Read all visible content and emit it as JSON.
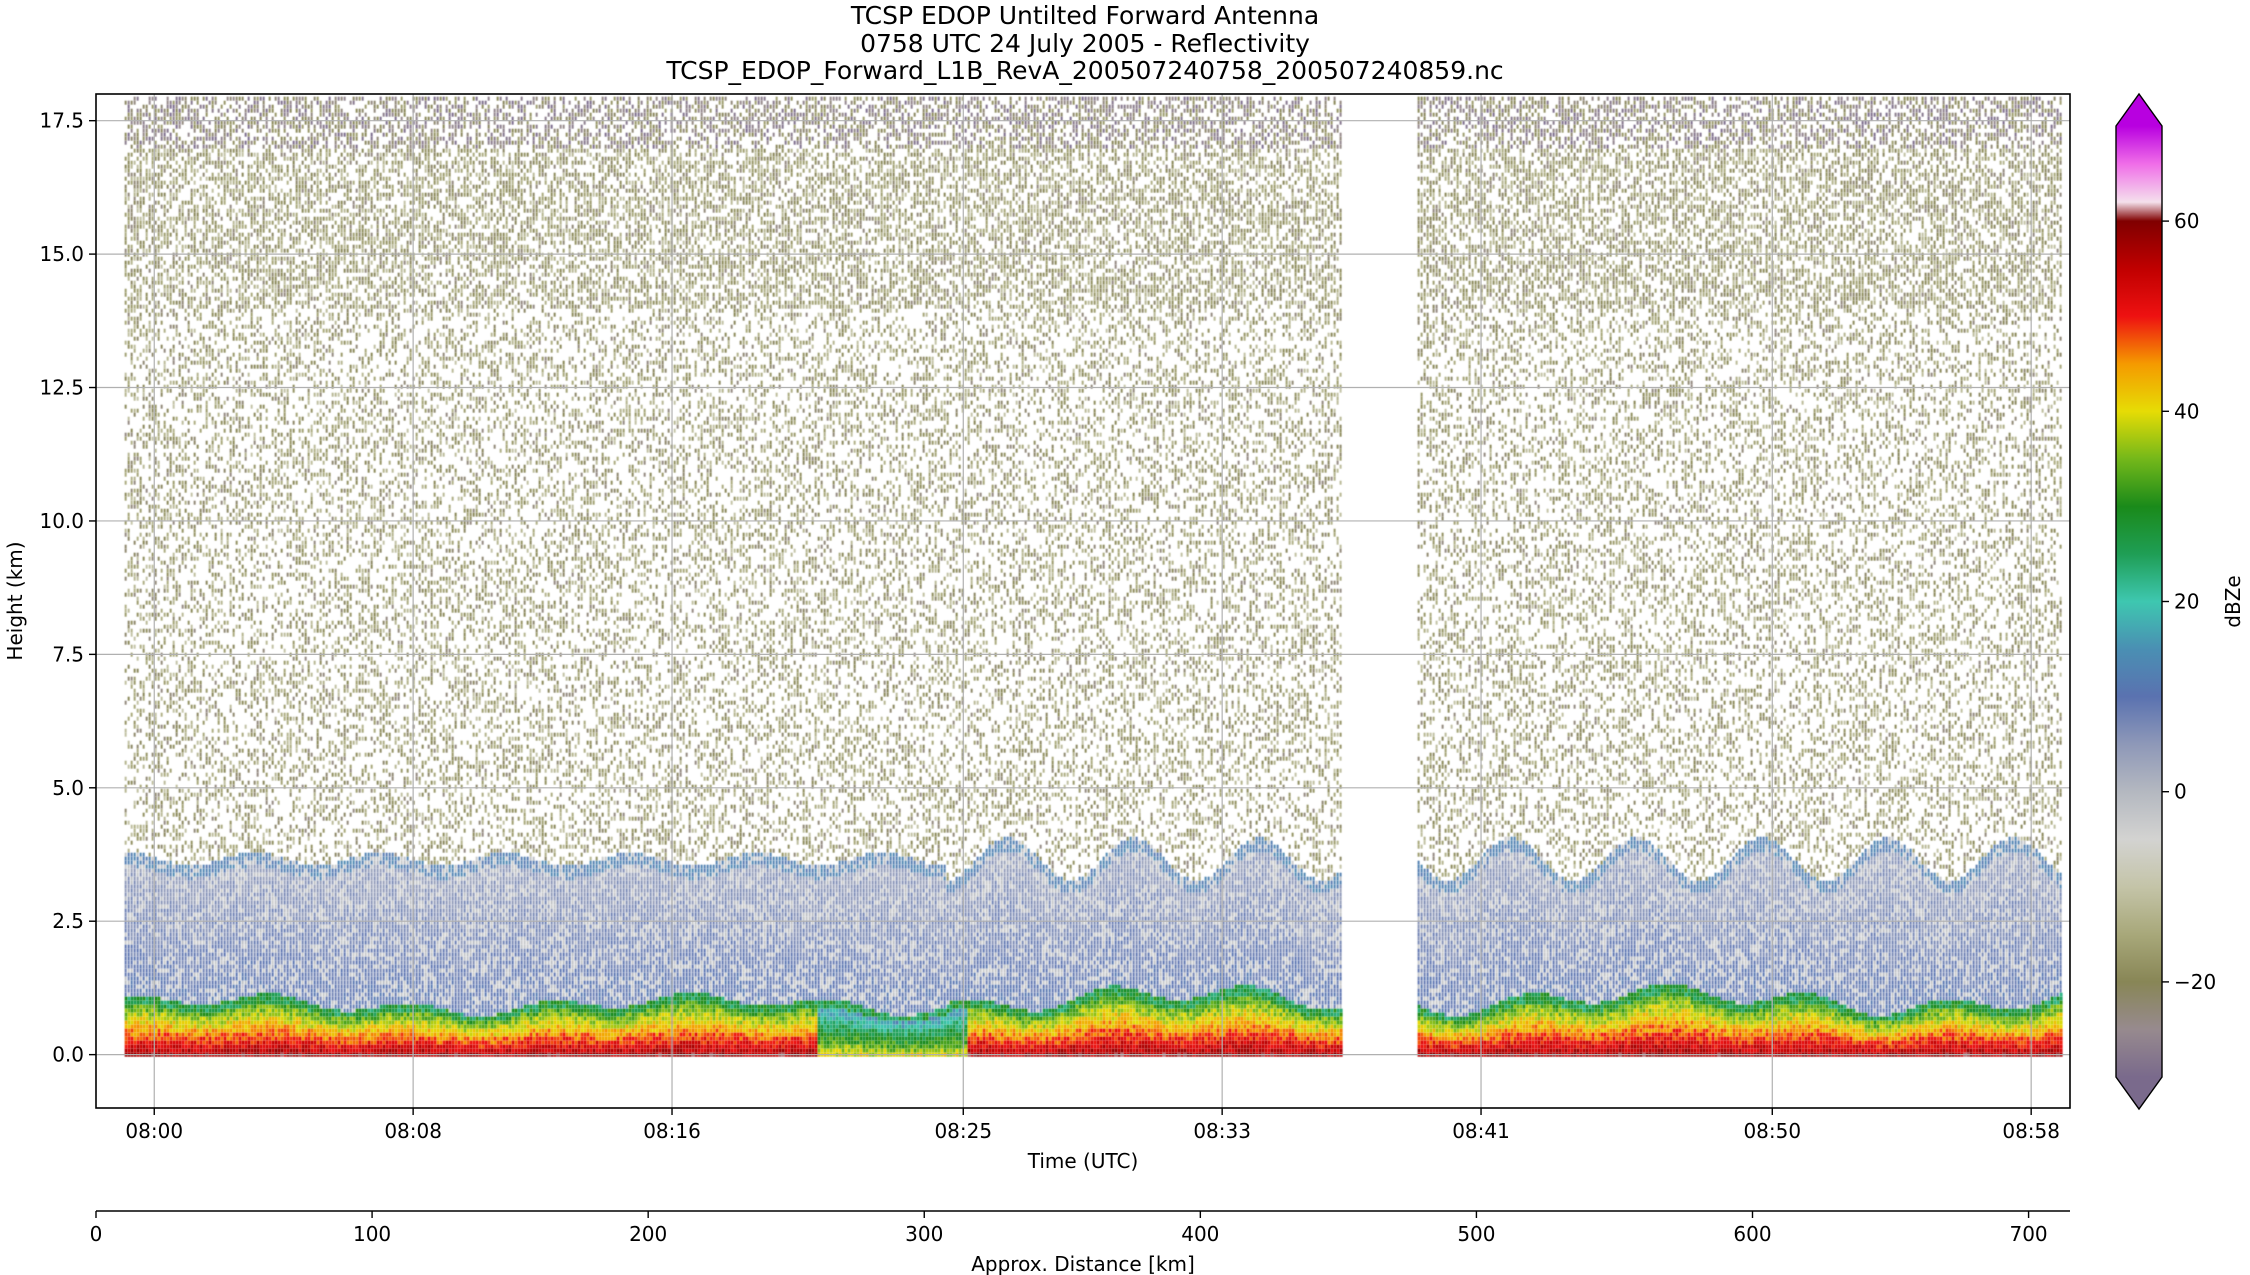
{
  "chart_data": {
    "type": "heatmap",
    "title": [
      "TCSP EDOP Untilted Forward Antenna",
      "0758 UTC 24 July 2005 - Reflectivity",
      "TCSP_EDOP_Forward_L1B_RevA_200507240758_200507240859.nc"
    ],
    "xlabel": "Time (UTC)",
    "ylabel": "Height (km)",
    "x2label": "Approx. Distance [km]",
    "colorbar_label": "dBZe",
    "xlim": [
      "07:58:12",
      "08:59:12"
    ],
    "ylim": [
      -1.0,
      18.0
    ],
    "x2lim": [
      0,
      715
    ],
    "clim": [
      -30,
      70
    ],
    "xticks": [
      "08:00",
      "08:08",
      "08:16",
      "08:25",
      "08:33",
      "08:41",
      "08:50",
      "08:58"
    ],
    "yticks": [
      0.0,
      2.5,
      5.0,
      7.5,
      10.0,
      12.5,
      15.0,
      17.5
    ],
    "x2ticks": [
      0,
      100,
      200,
      300,
      400,
      500,
      600,
      700
    ],
    "colorbar_ticks": [
      -20,
      0,
      20,
      40,
      60
    ],
    "grid": true,
    "data_gap": [
      "08:36:55",
      "08:38:40"
    ],
    "melting_layer_top_km": 3.7,
    "surface_band_km": [
      0.0,
      1.0
    ],
    "colormap": [
      {
        "v": -30,
        "c": "#7a6a8c"
      },
      {
        "v": -25,
        "c": "#978a8e"
      },
      {
        "v": -20,
        "c": "#888656"
      },
      {
        "v": -15,
        "c": "#a8a87a"
      },
      {
        "v": -10,
        "c": "#c4c4a8"
      },
      {
        "v": -5,
        "c": "#d3d3d1"
      },
      {
        "v": 0,
        "c": "#b4b8c0"
      },
      {
        "v": 5,
        "c": "#8e98b8"
      },
      {
        "v": 10,
        "c": "#5a72b0"
      },
      {
        "v": 15,
        "c": "#4a8fb3"
      },
      {
        "v": 20,
        "c": "#3ec7b0"
      },
      {
        "v": 25,
        "c": "#1f9e55"
      },
      {
        "v": 30,
        "c": "#1a8a1a"
      },
      {
        "v": 35,
        "c": "#74b81a"
      },
      {
        "v": 40,
        "c": "#e6dc05"
      },
      {
        "v": 45,
        "c": "#f59a00"
      },
      {
        "v": 50,
        "c": "#ee1111"
      },
      {
        "v": 55,
        "c": "#c00000"
      },
      {
        "v": 60,
        "c": "#800000"
      },
      {
        "v": 62,
        "c": "#f4e0ec"
      },
      {
        "v": 66,
        "c": "#f06ee8"
      },
      {
        "v": 70,
        "c": "#b800e0"
      }
    ]
  }
}
